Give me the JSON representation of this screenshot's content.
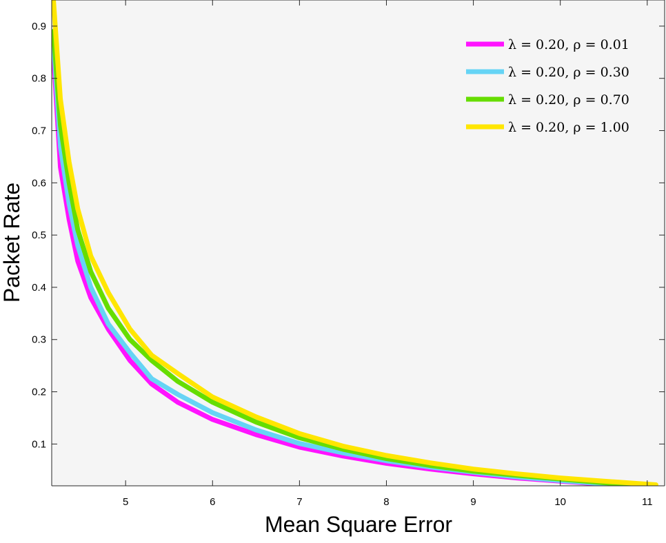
{
  "chart_data": {
    "type": "line",
    "title": "",
    "xlabel": "Mean Square Error",
    "ylabel": "Packet Rate",
    "xlim": [
      4.15,
      11.2
    ],
    "ylim": [
      0.02,
      0.95
    ],
    "xticks": [
      5,
      6,
      7,
      8,
      9,
      10,
      11
    ],
    "yticks": [
      0.1,
      0.2,
      0.3,
      0.4,
      0.5,
      0.6,
      0.7,
      0.8,
      0.9
    ],
    "xtick_labels": [
      "5",
      "6",
      "7",
      "8",
      "9",
      "10",
      "11"
    ],
    "ytick_labels": [
      "0.1",
      "0.2",
      "0.3",
      "0.4",
      "0.5",
      "0.6",
      "0.7",
      "0.8",
      "0.9"
    ],
    "grid": false,
    "background": "#f5f5f5",
    "legend_position": "top-right",
    "series": [
      {
        "name": "λ = 0.20, ρ = 0.01",
        "color": "#ff14ff",
        "x": [
          4.17,
          4.25,
          4.35,
          4.45,
          4.6,
          4.8,
          5.05,
          5.3,
          5.6,
          6.0,
          6.5,
          7.0,
          7.5,
          8.0,
          8.5,
          9.0,
          9.5,
          10.0,
          10.5,
          10.7
        ],
        "y": [
          0.85,
          0.63,
          0.53,
          0.45,
          0.38,
          0.32,
          0.26,
          0.215,
          0.18,
          0.147,
          0.118,
          0.094,
          0.077,
          0.063,
          0.052,
          0.043,
          0.035,
          0.029,
          0.023,
          0.021
        ]
      },
      {
        "name": "λ = 0.20, ρ = 0.30",
        "color": "#66d4f5",
        "x": [
          4.17,
          4.25,
          4.35,
          4.45,
          4.6,
          4.8,
          5.05,
          5.3,
          5.6,
          6.0,
          6.5,
          7.0,
          7.5,
          8.0,
          8.5,
          9.0,
          9.5,
          10.0,
          10.5,
          10.8
        ],
        "y": [
          0.87,
          0.67,
          0.56,
          0.48,
          0.4,
          0.33,
          0.275,
          0.225,
          0.195,
          0.16,
          0.127,
          0.101,
          0.083,
          0.068,
          0.056,
          0.046,
          0.037,
          0.03,
          0.024,
          0.021
        ]
      },
      {
        "name": "λ = 0.20, ρ = 0.70",
        "color": "#66dd00",
        "x": [
          4.17,
          4.25,
          4.35,
          4.45,
          4.6,
          4.8,
          5.05,
          5.3,
          5.6,
          6.0,
          6.5,
          7.0,
          7.5,
          8.0,
          8.5,
          9.0,
          9.5,
          10.0,
          10.5,
          10.95
        ],
        "y": [
          0.89,
          0.71,
          0.6,
          0.51,
          0.43,
          0.36,
          0.3,
          0.26,
          0.22,
          0.18,
          0.142,
          0.112,
          0.09,
          0.072,
          0.059,
          0.048,
          0.04,
          0.033,
          0.026,
          0.021
        ]
      },
      {
        "name": "λ = 0.20, ρ = 1.00",
        "color": "#ffe600",
        "x": [
          4.17,
          4.25,
          4.35,
          4.45,
          4.6,
          4.8,
          5.05,
          5.3,
          5.6,
          6.0,
          6.5,
          7.0,
          7.5,
          8.0,
          8.5,
          9.0,
          9.5,
          10.0,
          10.5,
          11.1
        ],
        "y": [
          0.95,
          0.76,
          0.64,
          0.55,
          0.46,
          0.39,
          0.32,
          0.27,
          0.235,
          0.19,
          0.152,
          0.12,
          0.096,
          0.078,
          0.064,
          0.052,
          0.043,
          0.035,
          0.029,
          0.022
        ]
      }
    ]
  }
}
